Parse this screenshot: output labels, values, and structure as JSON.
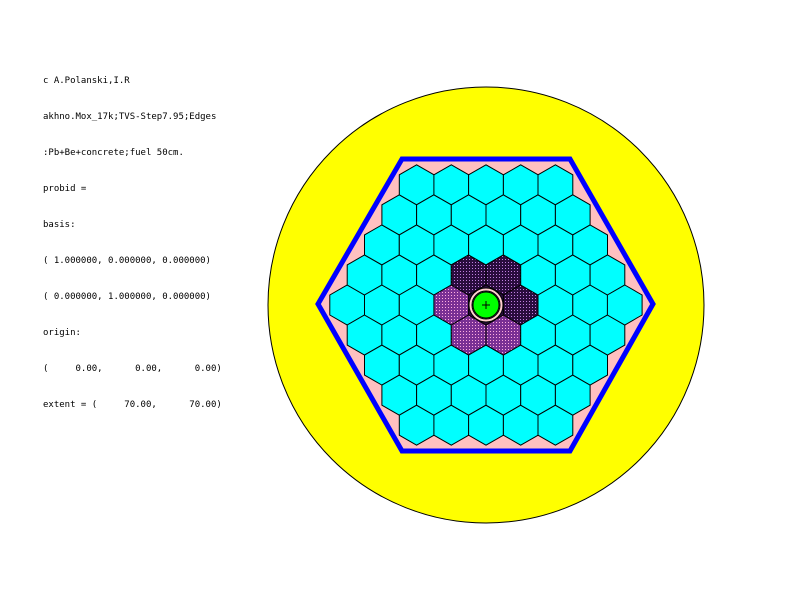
{
  "header_lines": [
    "c A.Polanski,I.R",
    "akhno.Mox_17k;TVS-Step7.95;Edges",
    ":Pb+Be+concrete;fuel 50cm.",
    "probid =",
    "basis:",
    "( 1.000000, 0.000000, 0.000000)",
    "( 0.000000, 1.000000, 0.000000)",
    "origin:",
    "(     0.00,      0.00,      0.00)",
    "extent = (     70.00,      70.00)"
  ],
  "colors": {
    "outer_reflector": "#ffff00",
    "outer_boundary": "#0000ff",
    "gap_fill": "#ffc0c0",
    "fuel_assembly": "#00ffff",
    "inner_assembly_dark": "#3a1450",
    "inner_assembly_magenta": "#8a3aa0",
    "target": "#00ff00",
    "cell_line": "#000000"
  }
}
